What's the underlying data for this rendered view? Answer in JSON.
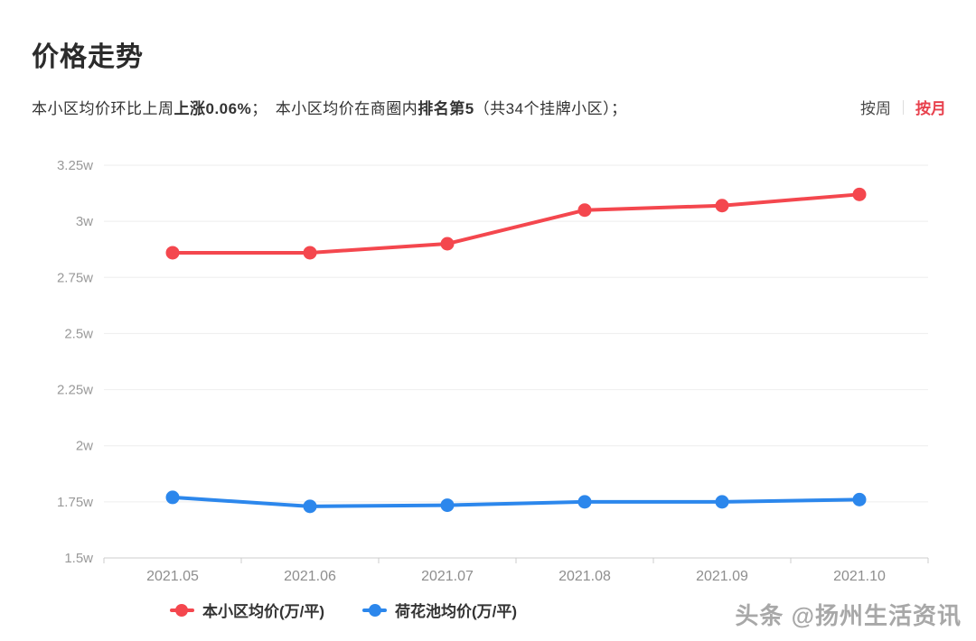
{
  "header": {
    "title": "价格走势"
  },
  "summary": {
    "segments": [
      "本小区均价环比上周",
      "上涨0.06%",
      "；　",
      "本小区均价在商圈内",
      "排名第5",
      "（共34个挂牌小区）；"
    ]
  },
  "toggle": {
    "week_label": "按周",
    "month_label": "按月",
    "active": "按月",
    "active_color": "#e8414d"
  },
  "watermark": {
    "text": "头条 @扬州生活资讯"
  },
  "chart_data": {
    "type": "line",
    "title": "价格走势",
    "categories": [
      "2021.05",
      "2021.06",
      "2021.07",
      "2021.08",
      "2021.09",
      "2021.10"
    ],
    "series": [
      {
        "name": "本小区均价(万/平)",
        "color": "#f4474e",
        "values": [
          2.86,
          2.86,
          2.9,
          3.05,
          3.07,
          3.12
        ]
      },
      {
        "name": "荷花池均价(万/平)",
        "color": "#2c87ec",
        "values": [
          1.77,
          1.73,
          1.735,
          1.75,
          1.75,
          1.76
        ]
      }
    ],
    "xlabel": "",
    "ylabel": "",
    "ylim": [
      1.5,
      3.25
    ],
    "y_tick_values": [
      3.25,
      3.0,
      2.75,
      2.5,
      2.25,
      2.0,
      1.75,
      1.5
    ],
    "y_tick_labels": [
      "3.25w",
      "3w",
      "2.75w",
      "2.5w",
      "2.25w",
      "2w",
      "1.75w",
      "1.5w"
    ],
    "grid": true,
    "legend_position": "bottom",
    "grid_color": "#eeeeee",
    "axis_color": "#cccccc"
  }
}
